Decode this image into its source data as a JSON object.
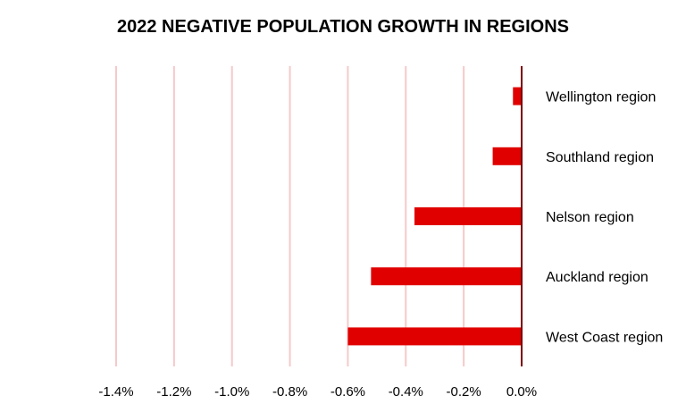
{
  "chart_data": {
    "type": "bar",
    "orientation": "horizontal",
    "title": "2022 NEGATIVE POPULATION GROWTH IN REGIONS",
    "categories": [
      "Wellington region",
      "Southland region",
      "Nelson region",
      "Auckland region",
      "West Coast region"
    ],
    "values": [
      -0.03,
      -0.1,
      -0.37,
      -0.52,
      -0.6
    ],
    "unit": "%",
    "xlim": [
      -1.4,
      0.0
    ],
    "xticks": [
      "-1.4%",
      "-1.2%",
      "-1.0%",
      "-0.8%",
      "-0.6%",
      "-0.4%",
      "-0.2%",
      "0.0%"
    ],
    "xtick_values": [
      -1.4,
      -1.2,
      -1.0,
      -0.8,
      -0.6,
      -0.4,
      -0.2,
      0.0
    ],
    "grid": true,
    "legend": "none",
    "colors": {
      "bar": "#e00000",
      "grid": "#f6c9c9",
      "axis": "#7a0000"
    }
  }
}
